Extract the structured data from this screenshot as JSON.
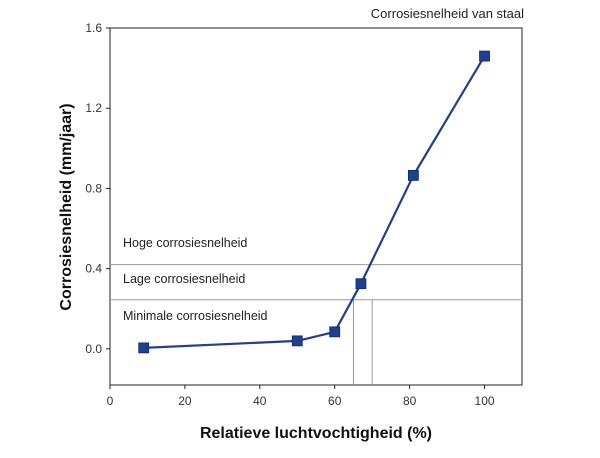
{
  "chart_data": {
    "type": "line",
    "title": "Corrosiesnelheid van staal",
    "xlabel": "Relatieve luchtvochtigheid (%)",
    "ylabel": "Corrosiesnelheid (mm/jaar)",
    "xlim": [
      0,
      110
    ],
    "ylim": [
      -0.18,
      1.6
    ],
    "x_ticks": [
      0,
      20,
      40,
      60,
      80,
      100
    ],
    "y_ticks": [
      0.0,
      0.4,
      0.8,
      1.2,
      1.6
    ],
    "x_tick_labels": [
      "0",
      "20",
      "40",
      "60",
      "80",
      "100"
    ],
    "y_tick_labels": [
      "0.0",
      "0.4",
      "0.8",
      "1.2",
      "1.6"
    ],
    "grid": false,
    "series": [
      {
        "name": "Corrosiesnelheid",
        "color": "#1f3f8f",
        "marker": "square",
        "x": [
          9,
          50,
          60,
          67,
          81,
          100
        ],
        "y": [
          0.005,
          0.04,
          0.085,
          0.325,
          0.865,
          1.46
        ]
      }
    ],
    "thresholds": [
      {
        "y": 0.42,
        "label_above": "Hoge corrosiesnelheid"
      },
      {
        "y": 0.245,
        "label_above": "Lage corrosiesnelheid",
        "label_below": "Minimale corrosiesnelheid"
      }
    ],
    "vertical_guides": [
      65,
      70
    ],
    "guide_color": "#9a9a9a"
  }
}
